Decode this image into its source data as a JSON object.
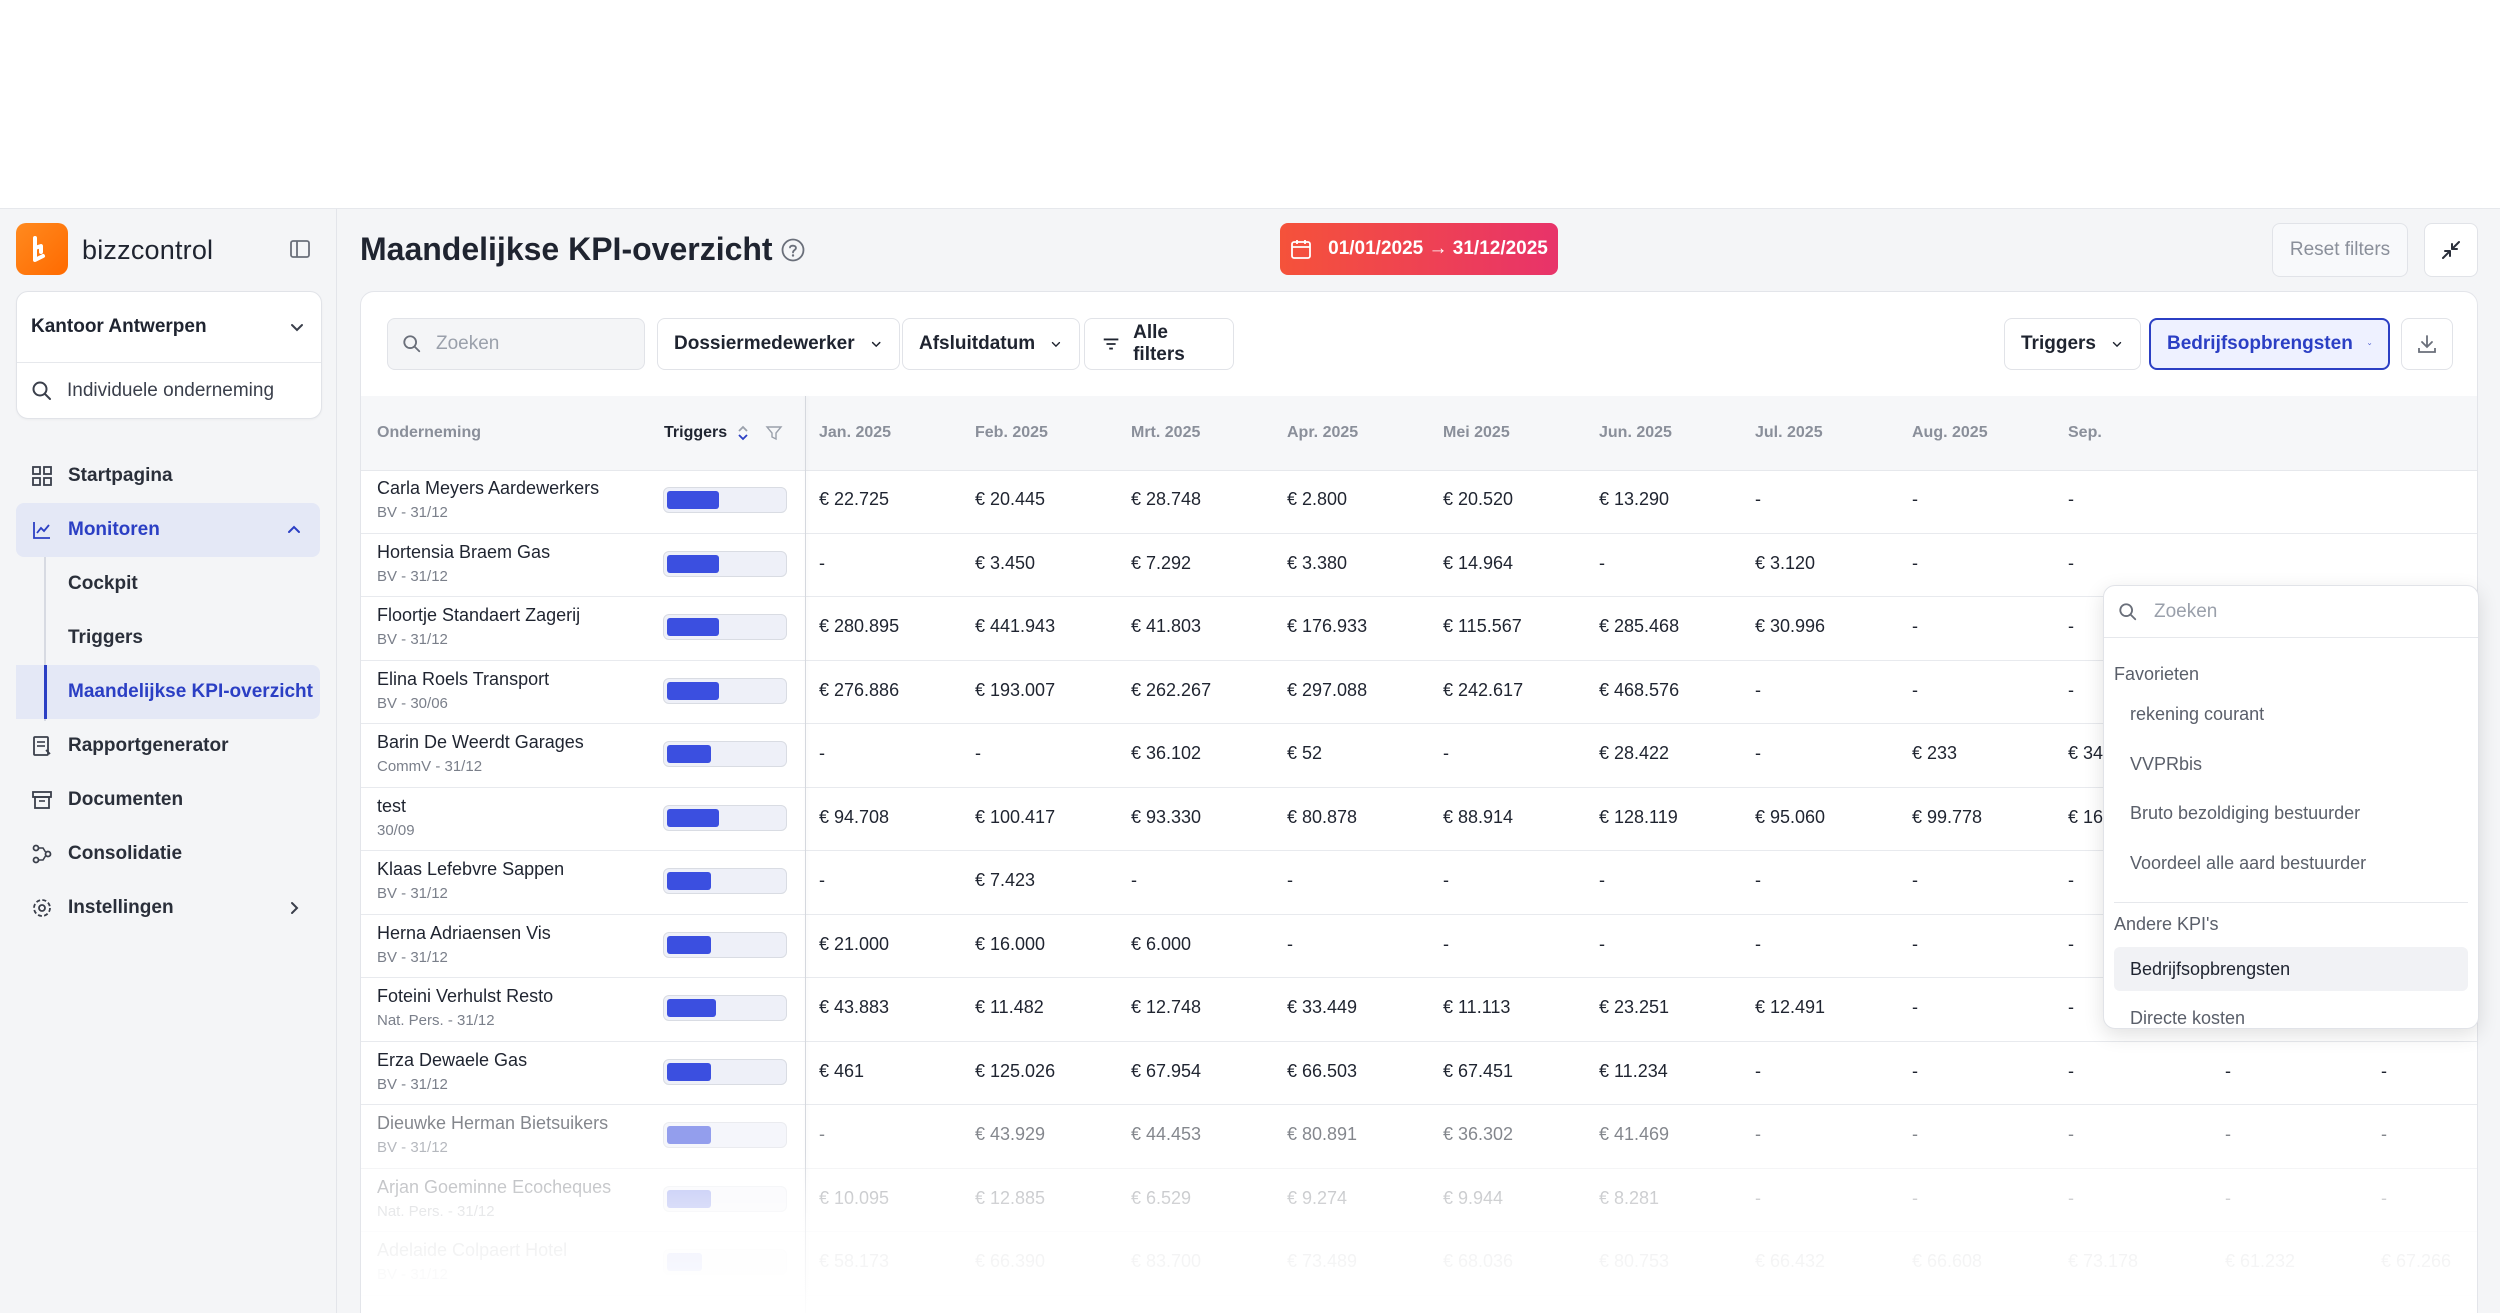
{
  "brand": {
    "name": "bizzcontrol",
    "accent": "#ff7a0f"
  },
  "office": {
    "name": "Kantoor Antwerpen",
    "scope": "Individuele onderneming"
  },
  "nav": {
    "items": [
      {
        "label": "Startpagina",
        "icon": "grid-icon"
      },
      {
        "label": "Monitoren",
        "icon": "chart-icon"
      },
      {
        "label": "Rapportgenerator",
        "icon": "report-icon"
      },
      {
        "label": "Documenten",
        "icon": "archive-icon"
      },
      {
        "label": "Consolidatie",
        "icon": "merge-icon"
      },
      {
        "label": "Instellingen",
        "icon": "gear-icon"
      }
    ],
    "monitoren_sub": [
      "Cockpit",
      "Triggers",
      "Maandelijkse KPI-overzicht"
    ]
  },
  "header": {
    "title": "Maandelijkse KPI-overzicht",
    "date_range": "01/01/2025 → 31/12/2025",
    "reset_label": "Reset filters"
  },
  "toolbar": {
    "search_placeholder": "Zoeken",
    "filter_dossier": "Dossiermedewerker",
    "filter_afsluit": "Afsluitdatum",
    "filter_all": "Alle filters",
    "triggers_label": "Triggers",
    "kpi_label": "Bedrijfsopbrengsten"
  },
  "table": {
    "col_company": "Onderneming",
    "col_triggers": "Triggers",
    "months": [
      "Jan. 2025",
      "Feb. 2025",
      "Mrt. 2025",
      "Apr. 2025",
      "Mei 2025",
      "Jun. 2025",
      "Jul. 2025",
      "Aug. 2025",
      "Sep."
    ],
    "rows": [
      {
        "name": "Carla Meyers Aardewerkers",
        "sub": "BV - 31/12",
        "trigger": 0.45,
        "values": [
          "€ 22.725",
          "€ 20.445",
          "€ 28.748",
          "€ 2.800",
          "€ 20.520",
          "€ 13.290",
          "-",
          "-",
          "-",
          "",
          ""
        ]
      },
      {
        "name": "Hortensia Braem Gas",
        "sub": "BV - 31/12",
        "trigger": 0.45,
        "values": [
          "-",
          "€ 3.450",
          "€ 7.292",
          "€ 3.380",
          "€ 14.964",
          "-",
          "€ 3.120",
          "-",
          "-",
          "",
          ""
        ]
      },
      {
        "name": "Floortje Standaert Zagerij",
        "sub": "BV - 31/12",
        "trigger": 0.45,
        "values": [
          "€ 280.895",
          "€ 441.943",
          "€ 41.803",
          "€ 176.933",
          "€ 115.567",
          "€ 285.468",
          "€ 30.996",
          "-",
          "-",
          "",
          ""
        ]
      },
      {
        "name": "Elina Roels Transport",
        "sub": "BV - 30/06",
        "trigger": 0.45,
        "values": [
          "€ 276.886",
          "€ 193.007",
          "€ 262.267",
          "€ 297.088",
          "€ 242.617",
          "€ 468.576",
          "-",
          "-",
          "-",
          "",
          ""
        ]
      },
      {
        "name": "Barin De Weerdt Garages",
        "sub": "CommV - 31/12",
        "trigger": 0.38,
        "values": [
          "-",
          "-",
          "€ 36.102",
          "€ 52",
          "-",
          "€ 28.422",
          "-",
          "€ 233",
          "€ 34",
          "",
          ""
        ]
      },
      {
        "name": "test",
        "sub": "30/09",
        "trigger": 0.45,
        "values": [
          "€ 94.708",
          "€ 100.417",
          "€ 93.330",
          "€ 80.878",
          "€ 88.914",
          "€ 128.119",
          "€ 95.060",
          "€ 99.778",
          "€ 16",
          "",
          ""
        ]
      },
      {
        "name": "Klaas Lefebvre Sappen",
        "sub": "BV - 31/12",
        "trigger": 0.38,
        "values": [
          "-",
          "€ 7.423",
          "-",
          "-",
          "-",
          "-",
          "-",
          "-",
          "-",
          "-",
          "-"
        ]
      },
      {
        "name": "Herna Adriaensen Vis",
        "sub": "BV - 31/12",
        "trigger": 0.38,
        "values": [
          "€ 21.000",
          "€ 16.000",
          "€ 6.000",
          "-",
          "-",
          "-",
          "-",
          "-",
          "-",
          "-",
          "-"
        ]
      },
      {
        "name": "Foteini Verhulst Resto",
        "sub": "Nat. Pers. - 31/12",
        "trigger": 0.42,
        "values": [
          "€ 43.883",
          "€ 11.482",
          "€ 12.748",
          "€ 33.449",
          "€ 11.113",
          "€ 23.251",
          "€ 12.491",
          "-",
          "-",
          "-",
          "-"
        ]
      },
      {
        "name": "Erza Dewaele Gas",
        "sub": "BV - 31/12",
        "trigger": 0.38,
        "values": [
          "€ 461",
          "€ 125.026",
          "€ 67.954",
          "€ 66.503",
          "€ 67.451",
          "€ 11.234",
          "-",
          "-",
          "-",
          "-",
          "-"
        ]
      },
      {
        "name": "Dieuwke Herman Bietsuikers",
        "sub": "BV - 31/12",
        "trigger": 0.38,
        "values": [
          "-",
          "€ 43.929",
          "€ 44.453",
          "€ 80.891",
          "€ 36.302",
          "€ 41.469",
          "-",
          "-",
          "-",
          "-",
          "-"
        ]
      },
      {
        "name": "Arjan Goeminne Ecocheques",
        "sub": "Nat. Pers. - 31/12",
        "trigger": 0.38,
        "values": [
          "€ 10.095",
          "€ 12.885",
          "€ 6.529",
          "€ 9.274",
          "€ 9.944",
          "€ 8.281",
          "-",
          "-",
          "-",
          "-",
          "-"
        ]
      },
      {
        "name": "Adelaide Colpaert Hotel",
        "sub": "BV - 31/12",
        "trigger": 0.3,
        "values": [
          "€ 58.173",
          "€ 66.390",
          "€ 83.700",
          "€ 73.489",
          "€ 68.036",
          "€ 80.753",
          "€ 66.432",
          "€ 66.608",
          "€ 73.178",
          "€ 61.232",
          "€ 67.266"
        ]
      }
    ]
  },
  "dropdown": {
    "search_placeholder": "Zoeken",
    "favorites_label": "Favorieten",
    "favorites": [
      "rekening courant",
      "VVPRbis",
      "Bruto bezoldiging bestuurder",
      "Voordeel alle aard bestuurder"
    ],
    "other_label": "Andere KPI's",
    "other": [
      "Bedrijfsopbrengsten",
      "Directe kosten"
    ],
    "selected": "Bedrijfsopbrengsten"
  }
}
